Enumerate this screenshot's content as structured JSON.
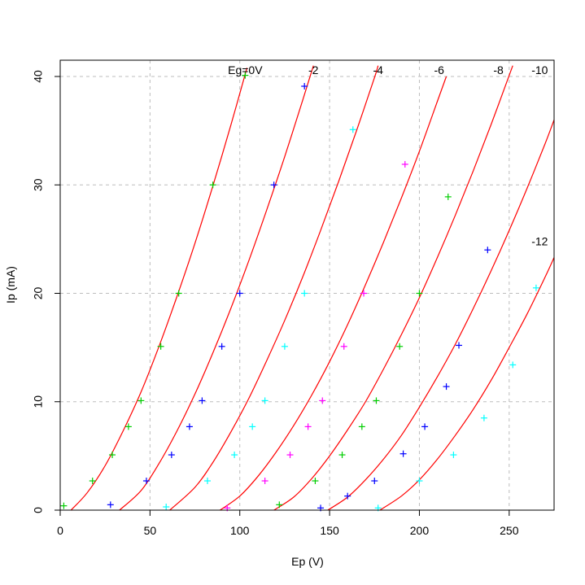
{
  "chart_data": {
    "type": "scatter",
    "title": "",
    "xlabel": "Ep (V)",
    "ylabel": "Ip (mA)",
    "xlim": [
      0,
      275
    ],
    "ylim": [
      0,
      41.5
    ],
    "grid": true,
    "x_ticks": [
      0,
      50,
      100,
      150,
      200,
      250
    ],
    "y_ticks": [
      0,
      10,
      20,
      30,
      40
    ],
    "colors": {
      "curve": "#ff0000",
      "grid": "#bebebe",
      "axis": "#000000",
      "green": "#00cd00",
      "blue": "#0000ff",
      "cyan": "#00ffff",
      "magenta": "#ff00ff"
    },
    "curve_labels": [
      {
        "text": "Eg=0V",
        "x": 103,
        "y": 40.5
      },
      {
        "text": "-2",
        "x": 141,
        "y": 40.5
      },
      {
        "text": "-4",
        "x": 177,
        "y": 40.5
      },
      {
        "text": "-6",
        "x": 211,
        "y": 40.5
      },
      {
        "text": "-8",
        "x": 244,
        "y": 40.5
      },
      {
        "text": "-10",
        "x": 267,
        "y": 40.5
      },
      {
        "text": "-12",
        "x": 267,
        "y": 24.7
      }
    ],
    "curves": [
      {
        "grid_voltage": 0,
        "points": [
          [
            6,
            0
          ],
          [
            15,
            1.6
          ],
          [
            25,
            4.1
          ],
          [
            35,
            7.3
          ],
          [
            45,
            10.9
          ],
          [
            55,
            15.1
          ],
          [
            65,
            19.7
          ],
          [
            75,
            24.6
          ],
          [
            85,
            29.9
          ],
          [
            95,
            35.5
          ],
          [
            104,
            40.8
          ]
        ]
      },
      {
        "grid_voltage": -2,
        "points": [
          [
            33,
            0
          ],
          [
            45,
            1.8
          ],
          [
            55,
            4.3
          ],
          [
            65,
            7.3
          ],
          [
            75,
            10.7
          ],
          [
            85,
            14.5
          ],
          [
            95,
            18.6
          ],
          [
            105,
            23.0
          ],
          [
            115,
            27.7
          ],
          [
            125,
            32.6
          ],
          [
            135,
            37.8
          ],
          [
            141,
            41.0
          ]
        ]
      },
      {
        "grid_voltage": -4,
        "points": [
          [
            61,
            0
          ],
          [
            75,
            2.1
          ],
          [
            85,
            4.4
          ],
          [
            95,
            7.2
          ],
          [
            105,
            10.3
          ],
          [
            115,
            13.8
          ],
          [
            125,
            17.5
          ],
          [
            135,
            21.5
          ],
          [
            145,
            25.8
          ],
          [
            155,
            30.3
          ],
          [
            165,
            35.0
          ],
          [
            175,
            39.9
          ],
          [
            177,
            41.0
          ]
        ]
      },
      {
        "grid_voltage": -6,
        "points": [
          [
            89,
            0
          ],
          [
            100,
            1.3
          ],
          [
            110,
            3.1
          ],
          [
            120,
            5.3
          ],
          [
            130,
            7.8
          ],
          [
            140,
            10.6
          ],
          [
            150,
            13.7
          ],
          [
            160,
            17.1
          ],
          [
            170,
            20.8
          ],
          [
            180,
            24.7
          ],
          [
            190,
            28.8
          ],
          [
            200,
            33.1
          ],
          [
            210,
            37.7
          ],
          [
            215,
            40.0
          ]
        ]
      },
      {
        "grid_voltage": -8,
        "points": [
          [
            119,
            0
          ],
          [
            130,
            1.2
          ],
          [
            140,
            2.9
          ],
          [
            150,
            5.0
          ],
          [
            160,
            7.4
          ],
          [
            170,
            10.0
          ],
          [
            180,
            13.0
          ],
          [
            190,
            16.2
          ],
          [
            200,
            19.6
          ],
          [
            210,
            23.3
          ],
          [
            220,
            27.2
          ],
          [
            230,
            31.3
          ],
          [
            240,
            35.6
          ],
          [
            250,
            40.1
          ],
          [
            252,
            41.0
          ]
        ]
      },
      {
        "grid_voltage": -10,
        "points": [
          [
            149,
            0
          ],
          [
            160,
            1.2
          ],
          [
            170,
            2.8
          ],
          [
            180,
            4.7
          ],
          [
            190,
            6.9
          ],
          [
            200,
            9.5
          ],
          [
            210,
            12.3
          ],
          [
            220,
            15.3
          ],
          [
            230,
            18.6
          ],
          [
            240,
            22.1
          ],
          [
            250,
            25.8
          ],
          [
            260,
            29.7
          ],
          [
            270,
            33.8
          ],
          [
            275,
            36.0
          ]
        ]
      },
      {
        "grid_voltage": -12,
        "points": [
          [
            178,
            0
          ],
          [
            190,
            1.3
          ],
          [
            200,
            2.8
          ],
          [
            210,
            4.7
          ],
          [
            220,
            6.9
          ],
          [
            230,
            9.3
          ],
          [
            240,
            12.0
          ],
          [
            250,
            15.0
          ],
          [
            260,
            18.1
          ],
          [
            270,
            21.5
          ],
          [
            275,
            23.3
          ]
        ]
      }
    ],
    "series": [
      {
        "color": "green",
        "points": [
          [
            2,
            0.4
          ],
          [
            18,
            2.7
          ],
          [
            29,
            5.1
          ],
          [
            38,
            7.7
          ],
          [
            45,
            10.1
          ],
          [
            56,
            15.1
          ],
          [
            66,
            20.0
          ],
          [
            85,
            30.0
          ],
          [
            103,
            40.1
          ]
        ]
      },
      {
        "color": "blue",
        "points": [
          [
            28,
            0.5
          ],
          [
            48,
            2.7
          ],
          [
            62,
            5.1
          ],
          [
            72,
            7.7
          ],
          [
            79,
            10.1
          ],
          [
            90,
            15.1
          ],
          [
            100,
            20.0
          ],
          [
            119,
            30.0
          ],
          [
            136,
            39.1
          ]
        ]
      },
      {
        "color": "cyan",
        "points": [
          [
            59,
            0.3
          ],
          [
            82,
            2.7
          ],
          [
            97,
            5.1
          ],
          [
            107,
            7.7
          ],
          [
            114,
            10.1
          ],
          [
            125,
            15.1
          ],
          [
            136,
            20.0
          ],
          [
            163,
            35.1
          ]
        ]
      },
      {
        "color": "magenta",
        "points": [
          [
            93,
            0.2
          ],
          [
            114,
            2.7
          ],
          [
            128,
            5.1
          ],
          [
            138,
            7.7
          ],
          [
            146,
            10.1
          ],
          [
            158,
            15.1
          ],
          [
            169,
            20.0
          ],
          [
            192,
            31.9
          ]
        ]
      },
      {
        "color": "green",
        "points": [
          [
            122,
            0.5
          ],
          [
            142,
            2.7
          ],
          [
            157,
            5.1
          ],
          [
            168,
            7.7
          ],
          [
            176,
            10.1
          ],
          [
            189,
            15.1
          ],
          [
            200,
            20.0
          ],
          [
            216,
            28.9
          ]
        ]
      },
      {
        "color": "blue",
        "points": [
          [
            145,
            0.2
          ],
          [
            160,
            1.3
          ],
          [
            175,
            2.7
          ],
          [
            191,
            5.2
          ],
          [
            203,
            7.7
          ],
          [
            215,
            11.4
          ],
          [
            222,
            15.2
          ],
          [
            238,
            24.0
          ]
        ]
      },
      {
        "color": "cyan",
        "points": [
          [
            177,
            0.2
          ],
          [
            200,
            2.7
          ],
          [
            219,
            5.1
          ],
          [
            236,
            8.5
          ],
          [
            252,
            13.4
          ],
          [
            265,
            20.5
          ]
        ]
      }
    ]
  }
}
